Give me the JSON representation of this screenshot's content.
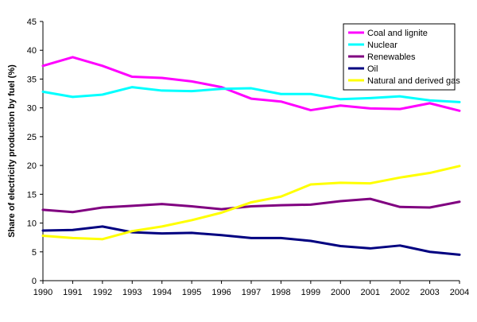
{
  "chart_data": {
    "type": "line",
    "title": "",
    "xlabel": "",
    "ylabel": "Share of electricity production by fuel (%)",
    "ylim": [
      0,
      45
    ],
    "yticks": [
      0,
      5,
      10,
      15,
      20,
      25,
      30,
      35,
      40,
      45
    ],
    "x": [
      "1990",
      "1991",
      "1992",
      "1993",
      "1994",
      "1995",
      "1996",
      "1997",
      "1998",
      "1999",
      "2000",
      "2001",
      "2002",
      "2003",
      "2004"
    ],
    "grid": false,
    "legend_position": "top-right",
    "series": [
      {
        "name": "Coal and lignite",
        "color": "#ff00ff",
        "values": [
          37.3,
          38.8,
          37.3,
          35.4,
          35.2,
          34.6,
          33.6,
          31.6,
          31.1,
          29.6,
          30.4,
          29.9,
          29.8,
          30.8,
          29.5
        ]
      },
      {
        "name": "Nuclear",
        "color": "#00ffff",
        "values": [
          32.8,
          31.9,
          32.3,
          33.6,
          33.0,
          32.9,
          33.3,
          33.4,
          32.4,
          32.4,
          31.5,
          31.7,
          32.0,
          31.3,
          31.0
        ]
      },
      {
        "name": "Renewables",
        "color": "#800080",
        "values": [
          12.3,
          11.9,
          12.7,
          13.0,
          13.3,
          12.9,
          12.4,
          12.9,
          13.1,
          13.2,
          13.8,
          14.2,
          12.8,
          12.7,
          13.7
        ]
      },
      {
        "name": "Oil",
        "color": "#000080",
        "values": [
          8.7,
          8.8,
          9.4,
          8.4,
          8.2,
          8.3,
          7.9,
          7.4,
          7.4,
          6.9,
          6.0,
          5.6,
          6.1,
          5.0,
          4.5
        ]
      },
      {
        "name": "Natural and derived gas",
        "color": "#ffff00",
        "values": [
          7.8,
          7.4,
          7.2,
          8.6,
          9.4,
          10.5,
          11.8,
          13.6,
          14.6,
          16.7,
          17.0,
          16.9,
          17.9,
          18.7,
          19.9
        ]
      }
    ]
  }
}
